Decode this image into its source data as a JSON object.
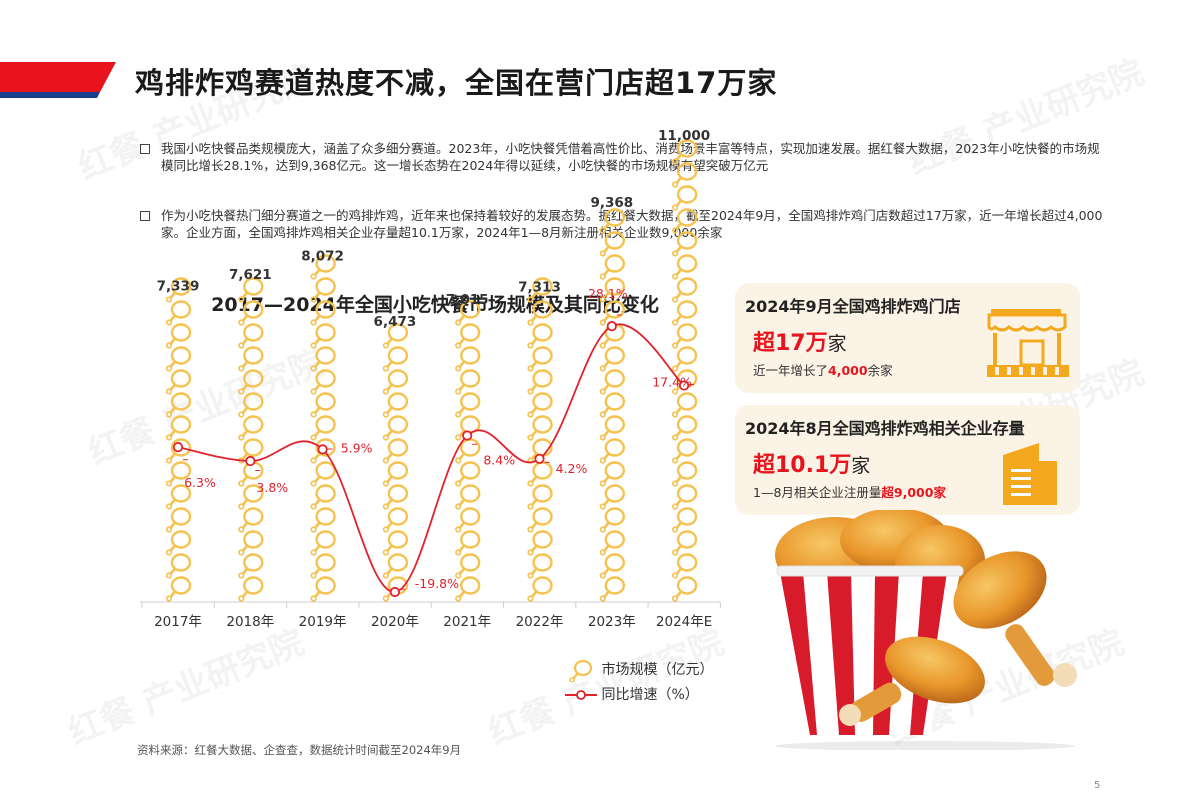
{
  "page": {
    "title": "鸡排炸鸡赛道热度不减，全国在营门店超17万家",
    "page_number": "5",
    "watermark": "红餐 产业研究院"
  },
  "bullets": [
    "我国小吃快餐品类规模庞大，涵盖了众多细分赛道。2023年，小吃快餐凭借着高性价比、消费场景丰富等特点，实现加速发展。据红餐大数据，2023年小吃快餐的市场规模同比增长28.1%，达到9,368亿元。这一增长态势在2024年得以延续，小吃快餐的市场规模有望突破万亿元",
    "作为小吃快餐热门细分赛道之一的鸡排炸鸡，近年来也保持着较好的发展态势。据红餐大数据，截至2024年9月，全国鸡排炸鸡门店数超过17万家，近一年增长超过4,000家。企业方面，全国鸡排炸鸡相关企业存量超10.1万家，2024年1—8月新注册相关企业数9,000余家"
  ],
  "chart_data": {
    "type": "bar",
    "title": "2017—2024年全国小吃快餐市场规模及其同比变化",
    "categories": [
      "2017年",
      "2018年",
      "2019年",
      "2020年",
      "2021年",
      "2022年",
      "2023年",
      "2024年E"
    ],
    "series": [
      {
        "name": "市场规模（亿元）",
        "kind": "pictograph-bar",
        "values": [
          7339,
          7621,
          8072,
          6473,
          7015,
          7313,
          9368,
          11000
        ],
        "labels": [
          "7,339",
          "7,621",
          "8,072",
          "6,473",
          "7,015",
          "7,313",
          "9,368",
          "11,000"
        ]
      },
      {
        "name": "同比增速（%）",
        "kind": "line",
        "values": [
          6.3,
          3.8,
          5.9,
          -19.8,
          8.4,
          4.2,
          28.1,
          17.4
        ],
        "labels": [
          "6.3%",
          "3.8%",
          "5.9%",
          "-19.8%",
          "8.4%",
          "4.2%",
          "28.1%",
          "17.4%"
        ]
      }
    ],
    "legend": [
      "市场规模（亿元）",
      "同比增速（%）"
    ],
    "legend_position": "bottom-right",
    "colors": {
      "bar": "#f5c24f",
      "line": "#e1222d",
      "axis": "#cfcfcf"
    }
  },
  "cards": [
    {
      "title": "2024年9月全国鸡排炸鸡门店",
      "big_prefix": "超17万",
      "big_unit": "家",
      "small_prefix": "近一年增长了",
      "small_highlight": "4,000",
      "small_suffix": "余家",
      "icon": "storefront-icon"
    },
    {
      "title": "2024年8月全国鸡排炸鸡相关企业存量",
      "big_prefix": "超10.1万",
      "big_unit": "家",
      "small_prefix": "1—8月相关企业注册量",
      "small_highlight": "超9,000家",
      "small_suffix": "",
      "icon": "building-icon"
    }
  ],
  "source": "资料来源：红餐大数据、企查查，数据统计时间截至2024年9月",
  "colors": {
    "accent_red": "#e8131d",
    "banner_blue": "#1a3f8f",
    "card_bg": "#fbf3e6",
    "icon_orange": "#f4a81d"
  }
}
